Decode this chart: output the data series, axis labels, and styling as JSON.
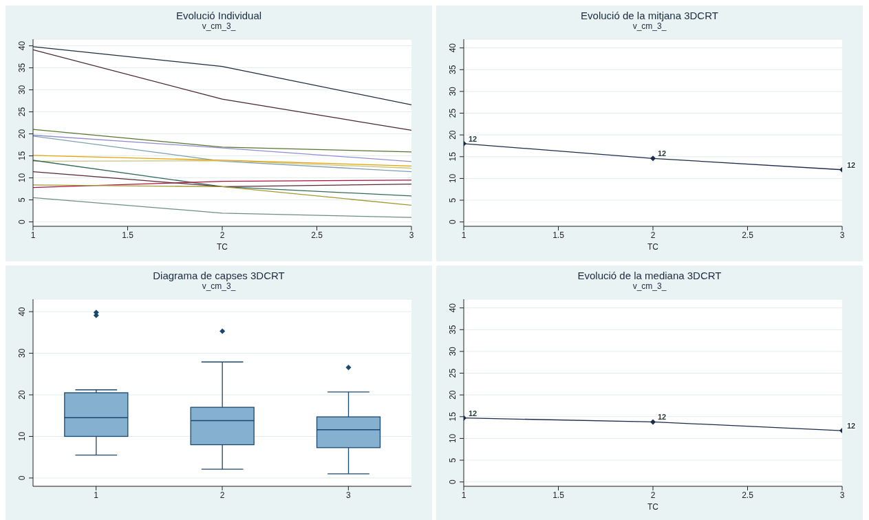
{
  "chart_data": [
    {
      "type": "line",
      "title": "Evolució Individual",
      "subtitle": "v_cm_3_",
      "xlabel": "TC",
      "x": [
        1,
        2,
        3
      ],
      "xlim": [
        1,
        3
      ],
      "xticks": [
        1,
        1.5,
        2,
        2.5,
        3
      ],
      "ylim": [
        -1,
        41.5
      ],
      "yticks": [
        0,
        5,
        10,
        15,
        20,
        25,
        30,
        35,
        40
      ],
      "grid": "y",
      "series": [
        {
          "color": "#1c2b3a",
          "values": [
            39.8,
            35.3,
            26.6
          ]
        },
        {
          "color": "#4a2330",
          "values": [
            39.1,
            27.9,
            20.8
          ]
        },
        {
          "color": "#55752f",
          "values": [
            21.0,
            17.0,
            15.9
          ]
        },
        {
          "color": "#938dd2",
          "values": [
            19.7,
            16.8,
            13.7
          ]
        },
        {
          "color": "#7aa0b0",
          "values": [
            19.5,
            13.8,
            11.4
          ]
        },
        {
          "color": "#e3a300",
          "values": [
            15.1,
            14.0,
            12.7
          ]
        },
        {
          "color": "#cac27e",
          "values": [
            13.8,
            13.9,
            12.2
          ]
        },
        {
          "color": "#2f6a5a",
          "values": [
            14.0,
            8.0,
            5.9
          ]
        },
        {
          "color": "#5a2a35",
          "values": [
            11.4,
            8.0,
            8.6
          ]
        },
        {
          "color": "#b0103a",
          "values": [
            7.8,
            9.2,
            9.5
          ]
        },
        {
          "color": "#a09a30",
          "values": [
            8.4,
            8.0,
            3.8
          ]
        },
        {
          "color": "#6e8e84",
          "values": [
            5.5,
            2.0,
            1.0
          ]
        }
      ]
    },
    {
      "type": "line",
      "title": "Evolució de la mitjana 3DCRT",
      "subtitle": "v_cm_3_",
      "xlabel": "TC",
      "x": [
        1,
        2,
        3
      ],
      "xlim": [
        1,
        3
      ],
      "xticks": [
        1,
        1.5,
        2,
        2.5,
        3
      ],
      "ylim": [
        -1,
        42
      ],
      "yticks": [
        0,
        5,
        10,
        15,
        20,
        25,
        30,
        35,
        40
      ],
      "grid": "y",
      "marker": "diamond",
      "series": [
        {
          "color": "#1a2a4a",
          "values": [
            18.0,
            14.6,
            12.0
          ]
        }
      ],
      "annotations": [
        {
          "text": "12",
          "x": 1,
          "y": 18.0
        },
        {
          "text": "12",
          "x": 2,
          "y": 14.6
        },
        {
          "text": "12",
          "x": 3,
          "y": 12.0
        }
      ]
    },
    {
      "type": "box",
      "title": "Diagrama de capses 3DCRT",
      "subtitle": "v_cm_3_",
      "categories": [
        "1",
        "2",
        "3"
      ],
      "ylim": [
        -2,
        43
      ],
      "yticks": [
        0,
        10,
        20,
        30,
        40
      ],
      "grid": "y",
      "color": "#86b0cf",
      "boxes": [
        {
          "low": 5.5,
          "q1": 10.0,
          "median": 14.5,
          "q3": 20.5,
          "high": 21.2,
          "outliers": [
            39.1,
            39.8
          ]
        },
        {
          "low": 2.1,
          "q1": 8.0,
          "median": 13.8,
          "q3": 17.0,
          "high": 27.9,
          "outliers": [
            35.3
          ]
        },
        {
          "low": 1.0,
          "q1": 7.3,
          "median": 11.6,
          "q3": 14.7,
          "high": 20.7,
          "outliers": [
            26.6
          ]
        }
      ]
    },
    {
      "type": "line",
      "title": "Evolució de la mediana 3DCRT",
      "subtitle": "v_cm_3_",
      "xlabel": "TC",
      "x": [
        1,
        2,
        3
      ],
      "xlim": [
        1,
        3
      ],
      "xticks": [
        1,
        1.5,
        2,
        2.5,
        3
      ],
      "ylim": [
        -1,
        42
      ],
      "yticks": [
        0,
        5,
        10,
        15,
        20,
        25,
        30,
        35,
        40
      ],
      "grid": "y",
      "marker": "diamond",
      "series": [
        {
          "color": "#1a2a4a",
          "values": [
            14.7,
            13.8,
            11.8
          ]
        }
      ],
      "annotations": [
        {
          "text": "12",
          "x": 1,
          "y": 14.7
        },
        {
          "text": "12",
          "x": 2,
          "y": 13.8
        },
        {
          "text": "12",
          "x": 3,
          "y": 11.8
        }
      ]
    }
  ]
}
